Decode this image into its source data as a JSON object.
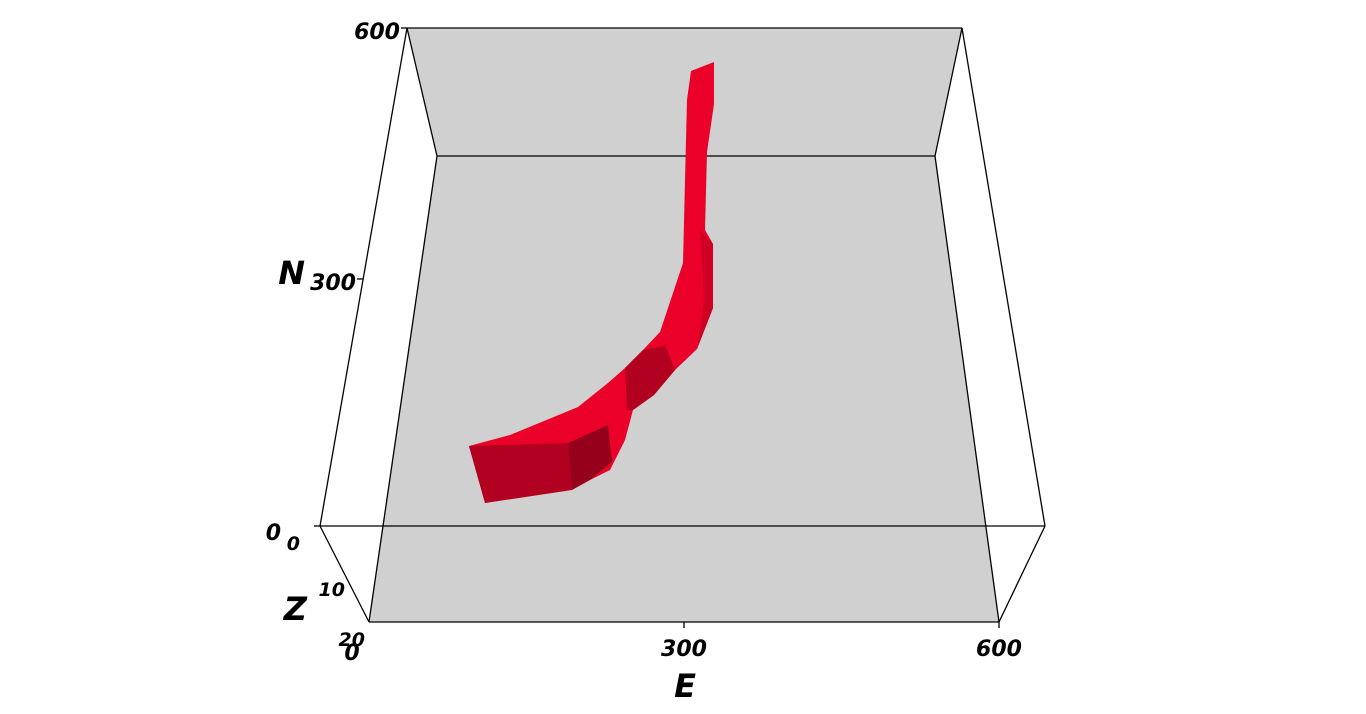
{
  "chart_data": {
    "type": "3d-surface",
    "axes": {
      "x": {
        "label": "E",
        "ticks": [
          "0",
          "300",
          "600"
        ],
        "range": [
          0,
          600
        ]
      },
      "y": {
        "label": "N",
        "ticks": [
          "0",
          "300",
          "600"
        ],
        "range": [
          0,
          600
        ]
      },
      "z": {
        "label": "Z",
        "ticks": [
          "0",
          "10",
          "20"
        ],
        "range": [
          0,
          20
        ]
      }
    },
    "colors": {
      "surface": "#ea0029",
      "surface_shadow": "#b10020",
      "surface_dark": "#95001a",
      "background_planes": "#d0d0d0",
      "box_edges": "#000000"
    }
  }
}
